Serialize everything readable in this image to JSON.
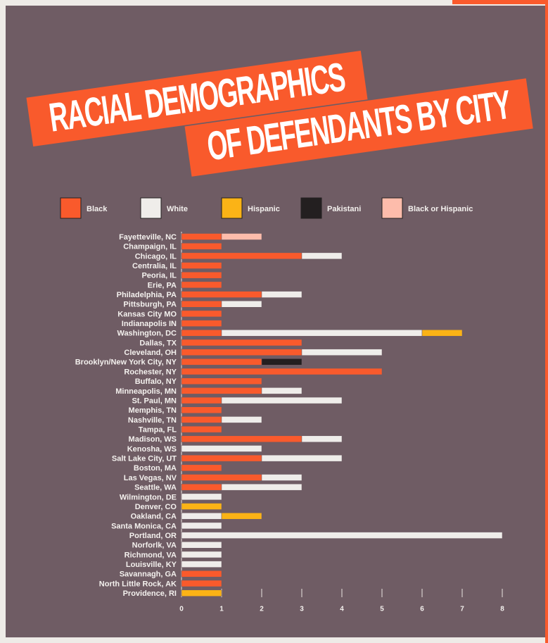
{
  "chart_data": {
    "type": "stacked-barh",
    "title": [
      "RACIAL DEMOGRAPHICS",
      "OF DEFENDANTS BY CITY"
    ],
    "categories": [
      "Fayetteville, NC",
      "Champaign, IL",
      "Chicago, IL",
      "Centralia, IL",
      "Peoria, IL",
      "Erie, PA",
      "Philadelphia, PA",
      "Pittsburgh, PA",
      "Kansas City MO",
      "Indianapolis IN",
      "Washington, DC",
      "Dallas, TX",
      "Cleveland, OH",
      "Brooklyn/New York City, NY",
      "Rochester, NY",
      "Buffalo, NY",
      "Minneapolis, MN",
      "St. Paul, MN",
      "Memphis, TN",
      "Nashville, TN",
      "Tampa, FL",
      "Madison, WS",
      "Kenosha, WS",
      "Salt Lake City, UT",
      "Boston, MA",
      "Las Vegas, NV",
      "Seattle, WA",
      "Wilmington, DE",
      "Denver, CO",
      "Oakland, CA",
      "Santa Monica, CA",
      "Portland, OR",
      "Norforlk, VA",
      "Richmond, VA",
      "Louisville, KY",
      "Savannagh, GA",
      "North Little Rock, AK",
      "Providence, RI"
    ],
    "series": [
      {
        "name": "Black",
        "color": "#f95a2c",
        "values": [
          1,
          1,
          3,
          1,
          1,
          1,
          2,
          1,
          1,
          1,
          1,
          3,
          3,
          2,
          5,
          2,
          2,
          1,
          1,
          1,
          1,
          3,
          0,
          2,
          1,
          2,
          1,
          0,
          0,
          0,
          0,
          0,
          0,
          0,
          0,
          1,
          1,
          0
        ]
      },
      {
        "name": "White",
        "color": "#efedea",
        "values": [
          0,
          0,
          1,
          0,
          0,
          0,
          1,
          1,
          0,
          0,
          5,
          0,
          2,
          0,
          0,
          0,
          1,
          3,
          0,
          1,
          0,
          1,
          2,
          2,
          0,
          1,
          2,
          1,
          0,
          1,
          1,
          8,
          1,
          1,
          1,
          0,
          0,
          0
        ]
      },
      {
        "name": "Hispanic",
        "color": "#fbb316",
        "values": [
          0,
          0,
          0,
          0,
          0,
          0,
          0,
          0,
          0,
          0,
          1,
          0,
          0,
          0,
          0,
          0,
          0,
          0,
          0,
          0,
          0,
          0,
          0,
          0,
          0,
          0,
          0,
          0,
          1,
          1,
          0,
          0,
          0,
          0,
          0,
          0,
          0,
          1
        ]
      },
      {
        "name": "Pakistani",
        "color": "#231f20",
        "values": [
          0,
          0,
          0,
          0,
          0,
          0,
          0,
          0,
          0,
          0,
          0,
          0,
          0,
          1,
          0,
          0,
          0,
          0,
          0,
          0,
          0,
          0,
          0,
          0,
          0,
          0,
          0,
          0,
          0,
          0,
          0,
          0,
          0,
          0,
          0,
          0,
          0,
          0
        ]
      },
      {
        "name": "Black or Hispanic",
        "color": "#fdbcab",
        "values": [
          1,
          0,
          0,
          0,
          0,
          0,
          0,
          0,
          0,
          0,
          0,
          0,
          0,
          0,
          0,
          0,
          0,
          0,
          0,
          0,
          0,
          0,
          0,
          0,
          0,
          0,
          0,
          0,
          0,
          0,
          0,
          0,
          0,
          0,
          0,
          0,
          0,
          0
        ]
      }
    ],
    "xlim": [
      0,
      8
    ],
    "xticks": [
      0,
      1,
      2,
      3,
      4,
      5,
      6,
      7,
      8
    ]
  }
}
